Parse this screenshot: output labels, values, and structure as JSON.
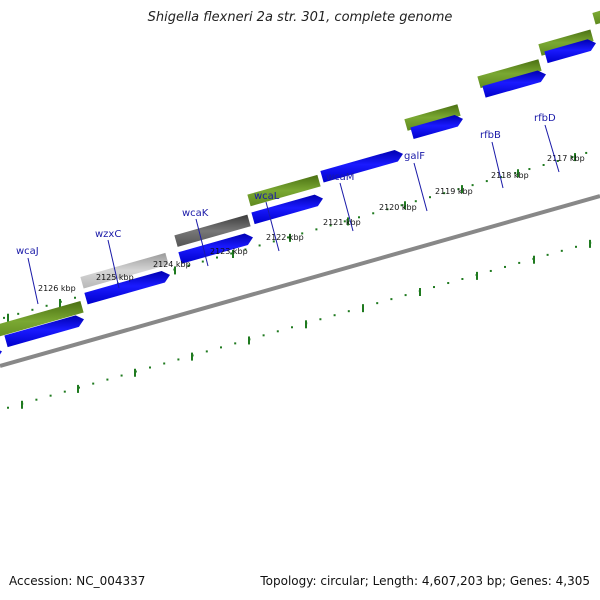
{
  "header": {
    "title": "Shigella flexneri 2a str. 301, complete genome"
  },
  "footer": {
    "accession": "Accession: NC_004337",
    "summary": "Topology: circular; Length: 4,607,203 bp; Genes: 4,305"
  },
  "scale": {
    "ticks": [
      "2126 kbp",
      "2125 kbp",
      "2124 kbp",
      "2123 kbp",
      "2122 kbp",
      "2121 kbp",
      "2120 kbp",
      "2119 kbp",
      "2118 kbp",
      "2117 kbp"
    ]
  },
  "genes": [
    "wcaJ",
    "wzxC",
    "wcaK",
    "wcaL",
    "wcaM",
    "galF",
    "rfbB",
    "rfbD"
  ],
  "colors": {
    "cds_arrow": "#0000ee",
    "feature_green": "#5f8a1f",
    "feature_gray_light": "#bdbdbd",
    "feature_gray_dark": "#5a5a5a",
    "tick_green": "#1f7a1f",
    "backbone": "#888888",
    "gene_label": "#1a1aa8"
  }
}
